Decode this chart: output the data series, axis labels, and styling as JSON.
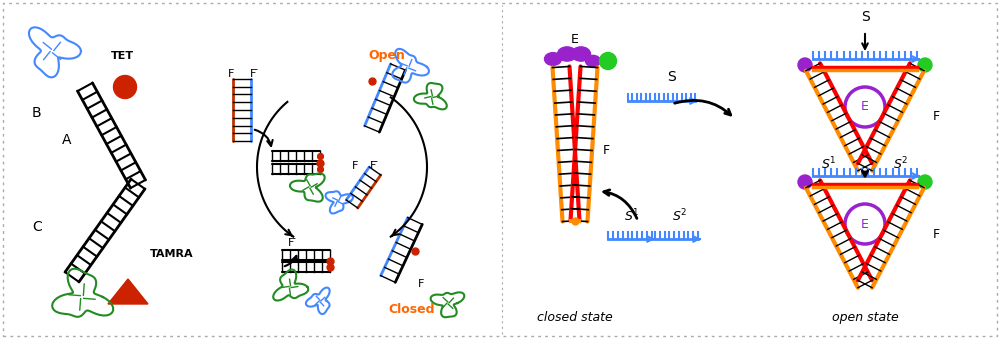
{
  "fig_width": 10.0,
  "fig_height": 3.39,
  "dpi": 100,
  "bg_color": "#ffffff",
  "colors": {
    "blue": "#4488ff",
    "green": "#228B22",
    "orange": "#FF8C00",
    "red": "#FF0000",
    "red_dark": "#CC2200",
    "black": "#000000",
    "purple": "#9922CC",
    "purple_light": "#AA44EE",
    "green_bright": "#22CC22",
    "orange_label": "#FF6600"
  },
  "labels": {
    "TET": "TET",
    "TAMRA": "TAMRA",
    "A": "A",
    "B": "B",
    "C": "C",
    "F": "F",
    "F_bar": "F̅",
    "Open": "Open",
    "Closed": "Closed",
    "S": "S",
    "E": "E",
    "closed_state": "closed state",
    "open_state": "open state"
  }
}
